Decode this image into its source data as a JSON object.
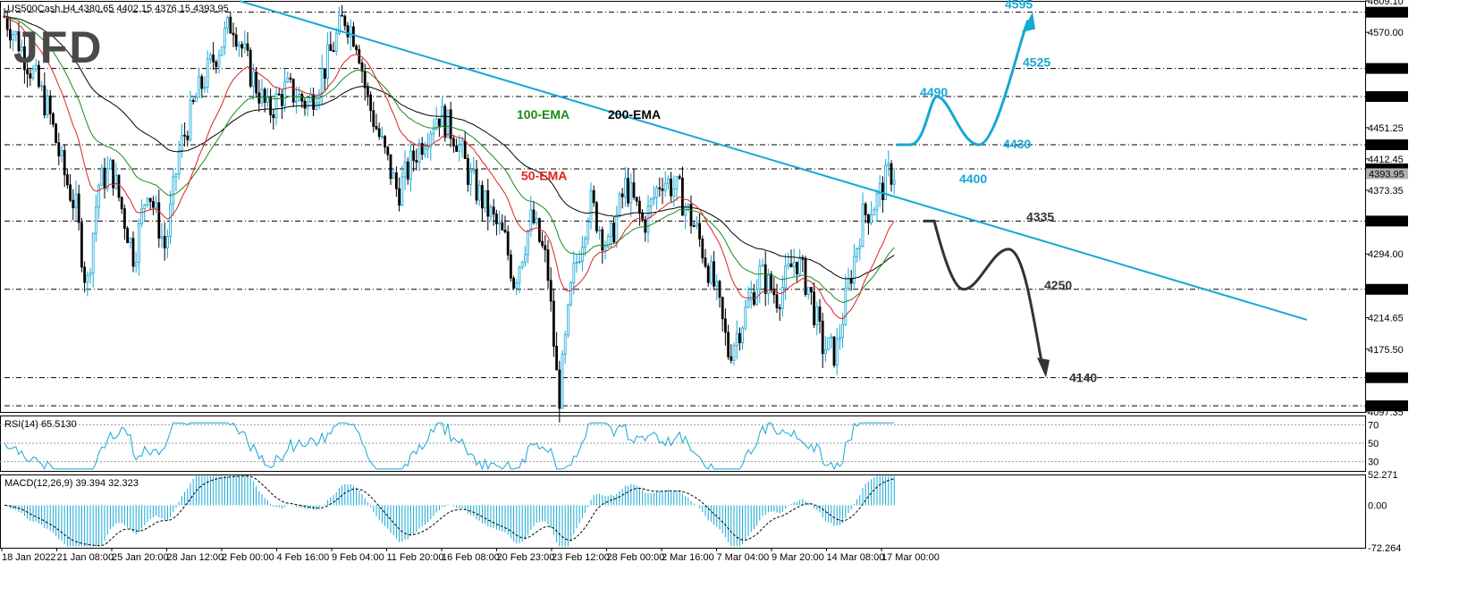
{
  "header": {
    "symbol_info": ".US500Cash,H4  4380.65 4402.15 4376.15 4393.95",
    "logo_text": "JFD"
  },
  "chart_data": [
    {
      "type": "candlestick",
      "symbol": ".US500Cash",
      "timeframe": "H4",
      "ohlc_last": {
        "open": 4380.65,
        "high": 4402.15,
        "low": 4376.15,
        "close": 4393.95
      },
      "ylim": [
        4097.35,
        4609.1
      ],
      "y_ticks": [
        4609.1,
        4595.0,
        4570.0,
        4525.0,
        4490.0,
        4451.25,
        4430.0,
        4412.45,
        4400.0,
        4393.95,
        4373.35,
        4335.0,
        4294.0,
        4250.0,
        4214.65,
        4175.5,
        4140.0,
        4105.0,
        4097.35
      ],
      "x_ticks": [
        "18 Jan 2022",
        "21 Jan 08:00",
        "25 Jan 20:00",
        "28 Jan 12:00",
        "2 Feb 00:00",
        "4 Feb 16:00",
        "9 Feb 04:00",
        "11 Feb 20:00",
        "16 Feb 08:00",
        "20 Feb 23:00",
        "23 Feb 12:00",
        "28 Feb 00:00",
        "2 Mar 16:00",
        "7 Mar 04:00",
        "9 Mar 20:00",
        "14 Mar 08:00",
        "17 Mar 00:00"
      ],
      "horizontal_levels": [
        4595,
        4525,
        4490,
        4430,
        4400,
        4335,
        4250,
        4140,
        4105
      ],
      "level_labels": [
        {
          "value": 4595.0,
          "text": "4595.00"
        },
        {
          "value": 4525.0,
          "text": "4525.00"
        },
        {
          "value": 4490.0,
          "text": "4490.00"
        },
        {
          "value": 4430.0,
          "text": "4430.00"
        },
        {
          "value": 4400.0,
          "text": "4400.00"
        },
        {
          "value": 4393.95,
          "text": "4393.95"
        },
        {
          "value": 4335.0,
          "text": "4335.00"
        },
        {
          "value": 4250.0,
          "text": "4250.00"
        },
        {
          "value": 4140.0,
          "text": "4140.00"
        },
        {
          "value": 4105.0,
          "text": "4105.00"
        }
      ],
      "moving_averages": [
        {
          "name": "200-EMA",
          "color": "#000000"
        },
        {
          "name": "100-EMA",
          "color": "#1a8a1a"
        },
        {
          "name": "50-EMA",
          "color": "#e02020"
        }
      ],
      "annotations": {
        "bullish": {
          "color": "#15a7d6",
          "labels": [
            "4595",
            "4525",
            "4490",
            "4430",
            "4400"
          ]
        },
        "bearish": {
          "color": "#333333",
          "labels": [
            "4335",
            "4250",
            "4140"
          ]
        },
        "trendline_color": "#15a7d6"
      }
    },
    {
      "type": "line",
      "name": "RSI(14)",
      "label": "RSI(14) 65.5130",
      "value": 65.513,
      "ylim": [
        20,
        80
      ],
      "y_ticks": [
        70,
        50,
        30
      ],
      "color": "#15a7d6"
    },
    {
      "type": "bar",
      "name": "MACD(12,26,9)",
      "label": "MACD(12,26,9) 39.394 32.323",
      "macd": 39.394,
      "signal": 32.323,
      "ylim": [
        -72.264,
        52.271
      ],
      "y_ticks": [
        "52.271",
        "0.00",
        "-72.264"
      ],
      "color": "#15a7d6"
    }
  ]
}
